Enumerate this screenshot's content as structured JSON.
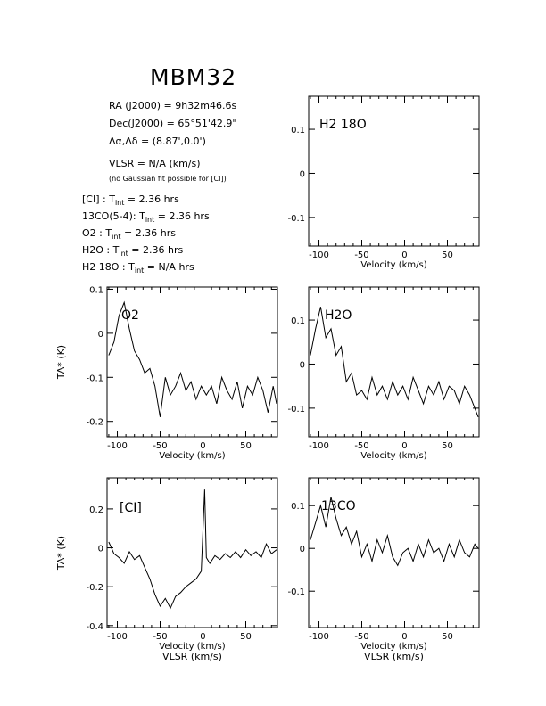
{
  "title": "MBM32",
  "info": {
    "ra_label": "RA (J2000)",
    "ra_value": "9h32m46.6s",
    "dec_label": "Dec(J2000)",
    "dec_value": "65°51'42.9\"",
    "offset_label": "Δα,Δδ",
    "offset_value": "(8.87',0.0')",
    "vlsr_label": "VLSR",
    "vlsr_value": "N/A",
    "vlsr_unit": "(km/s)",
    "fit_note": "(no Gaussian fit possible for [CI])",
    "integrations": [
      {
        "line": "[CI]",
        "tint": "2.36 hrs"
      },
      {
        "line": "13CO(5-4)",
        "tint": "2.36 hrs"
      },
      {
        "line": "O2",
        "tint": "2.36 hrs"
      },
      {
        "line": "H2O",
        "tint": "2.36 hrs"
      },
      {
        "line": "H2 18O",
        "tint": "N/A hrs"
      }
    ]
  },
  "chart_data": [
    {
      "type": "line",
      "id": "h218o",
      "panel_label": "H2 18O",
      "xlabel": "Velocity (km/s)",
      "ylabel": "",
      "xlim": [
        -112,
        87
      ],
      "ylim": [
        -0.165,
        0.175
      ],
      "xticks": [
        -100,
        -50,
        0,
        50
      ],
      "yticks": [
        -0.1,
        0,
        0.1
      ],
      "x": [],
      "y": []
    },
    {
      "type": "line",
      "id": "o2",
      "panel_label": "O2",
      "xlabel": "Velocity (km/s)",
      "ylabel": "TA* (K)",
      "xlim": [
        -112,
        87
      ],
      "ylim": [
        -0.235,
        0.105
      ],
      "xticks": [
        -100,
        -50,
        0,
        50
      ],
      "yticks": [
        -0.2,
        -0.1,
        0,
        0.1
      ],
      "x": [
        -110,
        -104,
        -98,
        -92,
        -86,
        -80,
        -74,
        -68,
        -62,
        -56,
        -50,
        -44,
        -38,
        -32,
        -26,
        -20,
        -14,
        -8,
        -2,
        4,
        10,
        16,
        22,
        28,
        34,
        40,
        46,
        52,
        58,
        64,
        70,
        76,
        82,
        86
      ],
      "y": [
        -0.05,
        -0.02,
        0.04,
        0.07,
        0.01,
        -0.04,
        -0.06,
        -0.09,
        -0.08,
        -0.12,
        -0.19,
        -0.1,
        -0.14,
        -0.12,
        -0.09,
        -0.13,
        -0.11,
        -0.15,
        -0.12,
        -0.14,
        -0.12,
        -0.16,
        -0.1,
        -0.13,
        -0.15,
        -0.11,
        -0.17,
        -0.12,
        -0.14,
        -0.1,
        -0.13,
        -0.18,
        -0.12,
        -0.16
      ]
    },
    {
      "type": "line",
      "id": "h2o",
      "panel_label": "H2O",
      "xlabel": "Velocity (km/s)",
      "ylabel": "",
      "xlim": [
        -112,
        87
      ],
      "ylim": [
        -0.165,
        0.175
      ],
      "xticks": [
        -100,
        -50,
        0,
        50
      ],
      "yticks": [
        -0.1,
        0,
        0.1
      ],
      "x": [
        -110,
        -104,
        -98,
        -92,
        -86,
        -80,
        -74,
        -68,
        -62,
        -56,
        -50,
        -44,
        -38,
        -32,
        -26,
        -20,
        -14,
        -8,
        -2,
        4,
        10,
        16,
        22,
        28,
        34,
        40,
        46,
        52,
        58,
        64,
        70,
        76,
        82,
        86
      ],
      "y": [
        0.02,
        0.08,
        0.13,
        0.06,
        0.08,
        0.02,
        0.04,
        -0.04,
        -0.02,
        -0.07,
        -0.06,
        -0.08,
        -0.03,
        -0.07,
        -0.05,
        -0.08,
        -0.04,
        -0.07,
        -0.05,
        -0.08,
        -0.03,
        -0.06,
        -0.09,
        -0.05,
        -0.07,
        -0.04,
        -0.08,
        -0.05,
        -0.06,
        -0.09,
        -0.05,
        -0.07,
        -0.1,
        -0.12
      ]
    },
    {
      "type": "line",
      "id": "ci",
      "panel_label": "[CI]",
      "xlabel": "Velocity (km/s)",
      "ylabel": "TA* (K)",
      "xlabel2": "VLSR (km/s)",
      "xlim": [
        -112,
        87
      ],
      "ylim": [
        -0.41,
        0.36
      ],
      "xticks": [
        -100,
        -50,
        0,
        50
      ],
      "yticks": [
        -0.4,
        -0.2,
        0,
        0.2
      ],
      "x": [
        -110,
        -104,
        -98,
        -92,
        -86,
        -80,
        -74,
        -68,
        -62,
        -56,
        -50,
        -44,
        -38,
        -32,
        -26,
        -20,
        -14,
        -8,
        -2,
        2,
        4,
        8,
        14,
        20,
        26,
        32,
        38,
        44,
        50,
        56,
        62,
        68,
        74,
        80,
        86
      ],
      "y": [
        0.03,
        -0.03,
        -0.05,
        -0.08,
        -0.02,
        -0.06,
        -0.04,
        -0.1,
        -0.16,
        -0.24,
        -0.3,
        -0.26,
        -0.31,
        -0.25,
        -0.23,
        -0.2,
        -0.18,
        -0.16,
        -0.12,
        0.3,
        -0.05,
        -0.08,
        -0.04,
        -0.06,
        -0.03,
        -0.05,
        -0.02,
        -0.05,
        -0.01,
        -0.04,
        -0.02,
        -0.05,
        0.02,
        -0.03,
        -0.01
      ]
    },
    {
      "type": "line",
      "id": "co13",
      "panel_label": "13CO",
      "xlabel": "Velocity (km/s)",
      "ylabel": "",
      "xlabel2": "VLSR (km/s)",
      "xlim": [
        -112,
        87
      ],
      "ylim": [
        -0.185,
        0.165
      ],
      "xticks": [
        -100,
        -50,
        0,
        50
      ],
      "yticks": [
        -0.1,
        0,
        0.1
      ],
      "x": [
        -110,
        -104,
        -98,
        -92,
        -86,
        -80,
        -74,
        -68,
        -62,
        -56,
        -50,
        -44,
        -38,
        -32,
        -26,
        -20,
        -14,
        -8,
        -2,
        4,
        10,
        16,
        22,
        28,
        34,
        40,
        46,
        52,
        58,
        64,
        70,
        76,
        82,
        86
      ],
      "y": [
        0.02,
        0.06,
        0.1,
        0.05,
        0.12,
        0.07,
        0.03,
        0.05,
        0.01,
        0.04,
        -0.02,
        0.01,
        -0.03,
        0.02,
        -0.01,
        0.03,
        -0.02,
        -0.04,
        -0.01,
        0.0,
        -0.03,
        0.01,
        -0.02,
        0.02,
        -0.01,
        0.0,
        -0.03,
        0.01,
        -0.02,
        0.02,
        -0.01,
        -0.02,
        0.01,
        0.0
      ]
    }
  ]
}
